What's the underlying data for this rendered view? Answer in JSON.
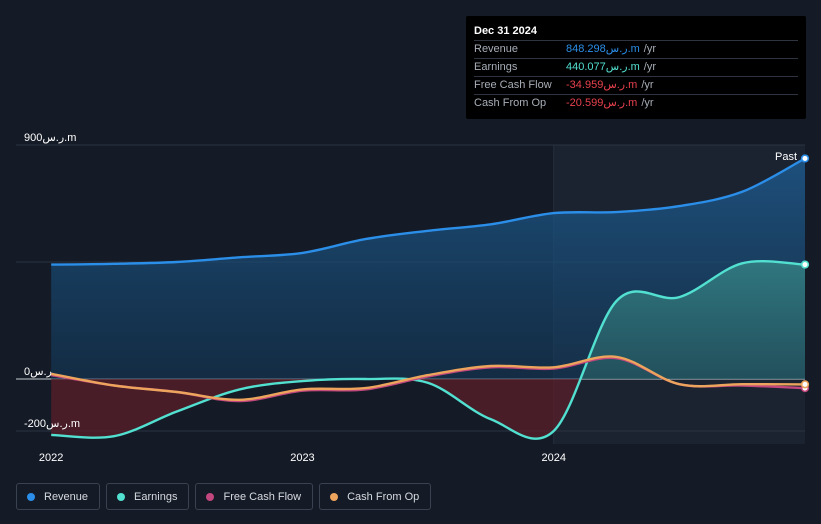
{
  "chart_data": {
    "type": "area",
    "x_ticks": [
      {
        "t": 2022.0,
        "label": "2022"
      },
      {
        "t": 2023.0,
        "label": "2023"
      },
      {
        "t": 2024.0,
        "label": "2024"
      }
    ],
    "x_range": [
      2021.86,
      2025.0
    ],
    "y_range": [
      -250,
      900
    ],
    "y_labels": [
      {
        "v": 900,
        "label": "900ر.س.m"
      },
      {
        "v": 0,
        "label": "0ر.س"
      },
      {
        "v": -200,
        "label": "-200ر.س.m"
      }
    ],
    "past_start": 2024.0,
    "past_label": "Past",
    "series": [
      {
        "key": "revenue",
        "name": "Revenue",
        "color": "#2b8ee8",
        "points": [
          [
            2022.0,
            440
          ],
          [
            2022.25,
            443
          ],
          [
            2022.5,
            450
          ],
          [
            2022.75,
            468
          ],
          [
            2023.0,
            485
          ],
          [
            2023.25,
            538
          ],
          [
            2023.5,
            570
          ],
          [
            2023.75,
            595
          ],
          [
            2024.0,
            638
          ],
          [
            2024.25,
            642
          ],
          [
            2024.5,
            665
          ],
          [
            2024.75,
            720
          ],
          [
            2025.0,
            848.298
          ]
        ]
      },
      {
        "key": "earnings",
        "name": "Earnings",
        "color": "#52e0d0",
        "points": [
          [
            2022.0,
            -215
          ],
          [
            2022.25,
            -220
          ],
          [
            2022.5,
            -125
          ],
          [
            2022.75,
            -40
          ],
          [
            2023.0,
            -8
          ],
          [
            2023.25,
            0
          ],
          [
            2023.5,
            -15
          ],
          [
            2023.75,
            -155
          ],
          [
            2024.0,
            -200
          ],
          [
            2024.25,
            300
          ],
          [
            2024.5,
            315
          ],
          [
            2024.75,
            445
          ],
          [
            2025.0,
            440.077
          ]
        ]
      },
      {
        "key": "fcf",
        "name": "Free Cash Flow",
        "color": "#c2477e",
        "points": [
          [
            2022.0,
            15
          ],
          [
            2022.25,
            -25
          ],
          [
            2022.5,
            -50
          ],
          [
            2022.75,
            -85
          ],
          [
            2023.0,
            -45
          ],
          [
            2023.25,
            -40
          ],
          [
            2023.5,
            10
          ],
          [
            2023.75,
            45
          ],
          [
            2024.0,
            40
          ],
          [
            2024.25,
            80
          ],
          [
            2024.5,
            -20
          ],
          [
            2024.75,
            -25
          ],
          [
            2025.0,
            -34.959
          ]
        ]
      },
      {
        "key": "cfo",
        "name": "Cash From Op",
        "color": "#eda45c",
        "points": [
          [
            2022.0,
            20
          ],
          [
            2022.25,
            -25
          ],
          [
            2022.5,
            -50
          ],
          [
            2022.75,
            -80
          ],
          [
            2023.0,
            -40
          ],
          [
            2023.25,
            -35
          ],
          [
            2023.5,
            15
          ],
          [
            2023.75,
            50
          ],
          [
            2024.0,
            45
          ],
          [
            2024.25,
            85
          ],
          [
            2024.5,
            -20
          ],
          [
            2024.75,
            -20
          ],
          [
            2025.0,
            -20.599
          ]
        ]
      }
    ]
  },
  "tooltip": {
    "date": "Dec 31 2024",
    "unit": "/yr",
    "rows": [
      {
        "label": "Revenue",
        "value": "848.298ر.س.m",
        "color": "#2b8ee8"
      },
      {
        "label": "Earnings",
        "value": "440.077ر.س.m",
        "color": "#52e0d0"
      },
      {
        "label": "Free Cash Flow",
        "value": "-34.959ر.س.m",
        "color": "#e8414e"
      },
      {
        "label": "Cash From Op",
        "value": "-20.599ر.س.m",
        "color": "#e8414e"
      }
    ]
  },
  "legend": [
    {
      "label": "Revenue",
      "color": "#2b8ee8"
    },
    {
      "label": "Earnings",
      "color": "#52e0d0"
    },
    {
      "label": "Free Cash Flow",
      "color": "#c2477e"
    },
    {
      "label": "Cash From Op",
      "color": "#eda45c"
    }
  ]
}
